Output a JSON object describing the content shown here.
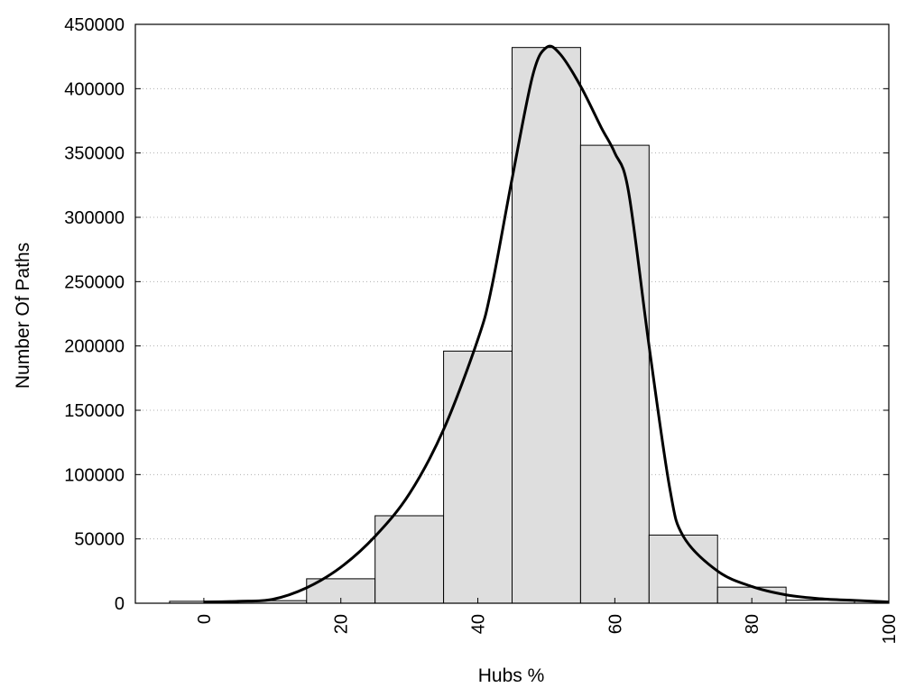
{
  "chart_data": {
    "type": "bar",
    "title": "",
    "xlabel": "Hubs %",
    "ylabel": "Number Of Paths",
    "xlim": [
      -10,
      100
    ],
    "ylim": [
      0,
      450000
    ],
    "bin_width": 10,
    "categories": [
      "0",
      "10",
      "20",
      "30",
      "40",
      "50",
      "60",
      "70",
      "80",
      "90"
    ],
    "values": [
      1500,
      2000,
      19000,
      68000,
      196000,
      432000,
      356000,
      53000,
      12500,
      2500
    ],
    "x_ticks": [
      0,
      20,
      40,
      60,
      80,
      100
    ],
    "y_ticks": [
      0,
      50000,
      100000,
      150000,
      200000,
      250000,
      300000,
      350000,
      400000,
      450000
    ],
    "grid": "horizontal dotted",
    "fit_curve": {
      "x": [
        0,
        5,
        10,
        15,
        20,
        25,
        30,
        35,
        40,
        42,
        45,
        48,
        50,
        52,
        55,
        58,
        60,
        62,
        65,
        68,
        70,
        75,
        80,
        85,
        90,
        95,
        100
      ],
      "y": [
        1000,
        1500,
        3000,
        12000,
        28000,
        52000,
        85000,
        135000,
        205000,
        245000,
        330000,
        410000,
        432000,
        427000,
        402000,
        370000,
        350000,
        320000,
        200000,
        90000,
        52000,
        25000,
        13000,
        6500,
        3500,
        2200,
        1000
      ]
    }
  }
}
